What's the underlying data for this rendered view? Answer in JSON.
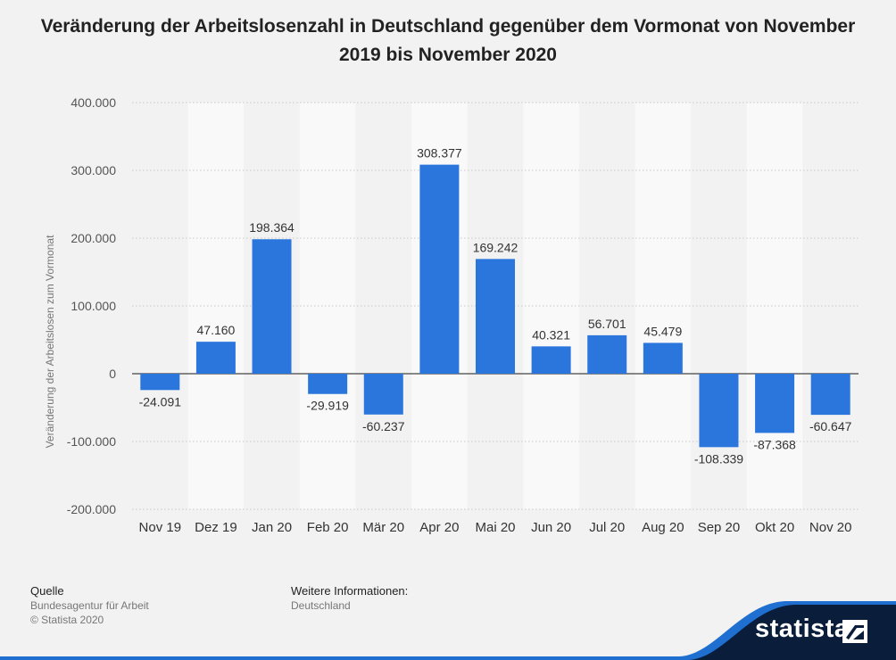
{
  "chart_data": {
    "type": "bar",
    "title": "Veränderung der Arbeitslosenzahl in Deutschland gegenüber dem Vormonat von November 2019 bis November 2020",
    "ylabel": "Veränderung der Arbeitslosen zum Vormonat",
    "xlabel": "",
    "categories": [
      "Nov 19",
      "Dez 19",
      "Jan 20",
      "Feb 20",
      "Mär 20",
      "Apr 20",
      "Mai 20",
      "Jun 20",
      "Jul 20",
      "Aug 20",
      "Sep 20",
      "Okt 20",
      "Nov 20"
    ],
    "values": [
      -24091,
      47160,
      198364,
      -29919,
      -60237,
      308377,
      169242,
      40321,
      56701,
      45479,
      -108339,
      -87368,
      -60647
    ],
    "value_labels": [
      "-24.091",
      "47.160",
      "198.364",
      "-29.919",
      "-60.237",
      "308.377",
      "169.242",
      "40.321",
      "56.701",
      "45.479",
      "-108.339",
      "-87.368",
      "-60.647"
    ],
    "ylim": [
      -200000,
      400000
    ],
    "yticks": [
      400000,
      300000,
      200000,
      100000,
      0,
      -100000,
      -200000
    ],
    "ytick_labels": [
      "400.000",
      "300.000",
      "200.000",
      "100.000",
      "0",
      "-100.000",
      "-200.000"
    ],
    "grid": true,
    "bar_color": "#2a76dd"
  },
  "footer": {
    "source_heading": "Quelle",
    "source_lines": [
      "Bundesagentur für Arbeit",
      "© Statista 2020"
    ],
    "info_heading": "Weitere Informationen:",
    "info_lines": [
      "Deutschland"
    ]
  },
  "brand": {
    "name": "statista",
    "logo_icon": "statista-logo-icon",
    "bar_color": "#0a1e3c",
    "accent_color": "#1f6fd1"
  }
}
